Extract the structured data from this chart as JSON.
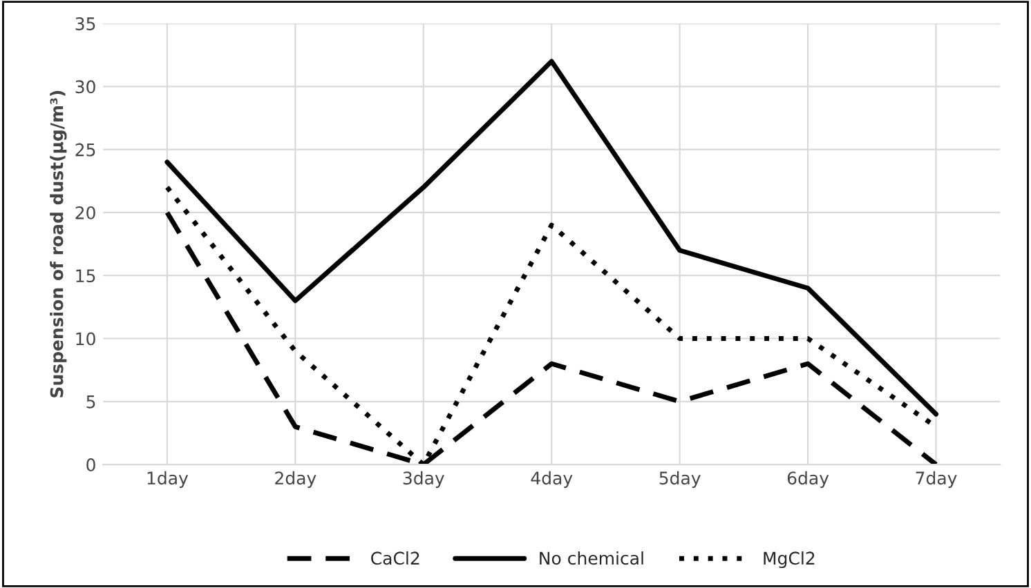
{
  "chart_data": {
    "type": "line",
    "ylabel": "Suspension of road dust(μg/m³)",
    "categories": [
      "1day",
      "2day",
      "3day",
      "4day",
      "5day",
      "6day",
      "7day"
    ],
    "series": [
      {
        "name": "CaCl2",
        "color": "#000000",
        "line_style": "dashed",
        "values": [
          20,
          3,
          0,
          8,
          5,
          8,
          0
        ]
      },
      {
        "name": "No chemical",
        "color": "#000000",
        "line_style": "solid",
        "values": [
          24,
          13,
          22,
          32,
          17,
          14,
          4
        ]
      },
      {
        "name": "MgCl2",
        "color": "#000000",
        "line_style": "dotted",
        "values": [
          22,
          9,
          0,
          19,
          10,
          10,
          3
        ]
      }
    ],
    "ylim": [
      0,
      35
    ],
    "yticks": [
      0,
      5,
      10,
      15,
      20,
      25,
      30,
      35
    ],
    "grid": true,
    "legend": "bottom",
    "marker": "none"
  }
}
